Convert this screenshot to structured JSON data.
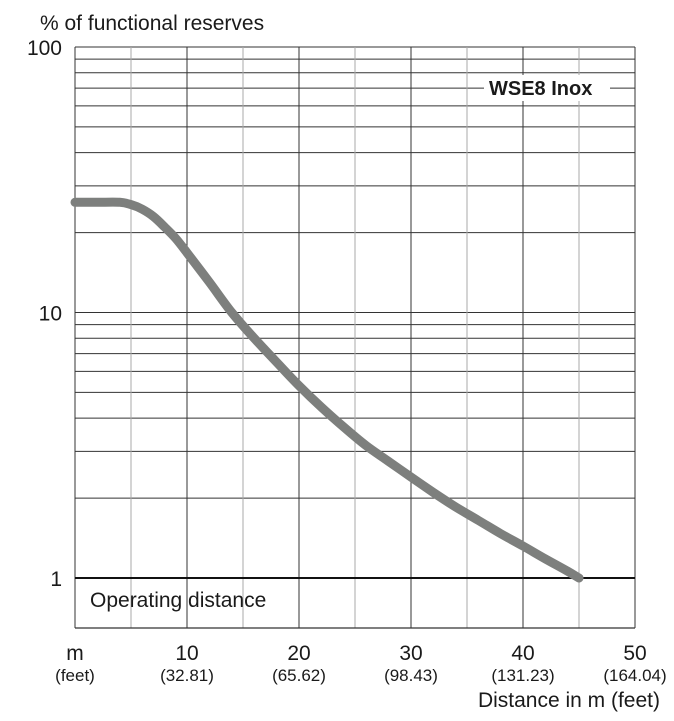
{
  "chart_data": {
    "type": "line",
    "ylabel": "% of functional reserves",
    "xlabel": "Distance in m (feet)",
    "x_unit_label": "m",
    "x_unit_sub_label": "(feet)",
    "y_scale": "log",
    "ylim": [
      1,
      100
    ],
    "xlim": [
      0,
      50
    ],
    "grid": true,
    "x_ticks": [
      {
        "value": 10,
        "label": "10",
        "sub": "(32.81)"
      },
      {
        "value": 20,
        "label": "20",
        "sub": "(65.62)"
      },
      {
        "value": 30,
        "label": "30",
        "sub": "(98.43)"
      },
      {
        "value": 40,
        "label": "40",
        "sub": "(131.23)"
      },
      {
        "value": 50,
        "label": "50",
        "sub": "(164.04)"
      }
    ],
    "y_ticks": [
      {
        "value": 1,
        "label": "1"
      },
      {
        "value": 10,
        "label": "10"
      },
      {
        "value": 100,
        "label": "100"
      }
    ],
    "series": [
      {
        "name": "WSE8 Inox",
        "x": [
          0,
          2,
          4,
          5,
          6,
          7,
          8,
          9,
          10,
          12,
          14,
          16,
          18,
          20,
          22,
          24,
          26,
          28,
          30,
          32,
          34,
          36,
          38,
          40,
          42,
          44,
          45
        ],
        "y": [
          26,
          26,
          26,
          25.5,
          24.5,
          23,
          21,
          19,
          16.8,
          13,
          10,
          8,
          6.5,
          5.3,
          4.4,
          3.7,
          3.15,
          2.75,
          2.4,
          2.1,
          1.85,
          1.65,
          1.47,
          1.32,
          1.18,
          1.06,
          1.0
        ]
      }
    ],
    "reference_line": {
      "y": 1,
      "label": "Operating distance"
    },
    "series_color": "#7d7f7d"
  }
}
